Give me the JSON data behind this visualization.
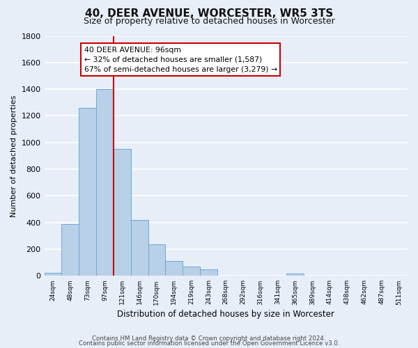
{
  "title": "40, DEER AVENUE, WORCESTER, WR5 3TS",
  "subtitle": "Size of property relative to detached houses in Worcester",
  "xlabel": "Distribution of detached houses by size in Worcester",
  "ylabel": "Number of detached properties",
  "footer_line1": "Contains HM Land Registry data © Crown copyright and database right 2024.",
  "footer_line2": "Contains public sector information licensed under the Open Government Licence v3.0.",
  "bin_labels": [
    "24sqm",
    "48sqm",
    "73sqm",
    "97sqm",
    "121sqm",
    "146sqm",
    "170sqm",
    "194sqm",
    "219sqm",
    "243sqm",
    "268sqm",
    "292sqm",
    "316sqm",
    "341sqm",
    "365sqm",
    "389sqm",
    "414sqm",
    "438sqm",
    "462sqm",
    "487sqm",
    "511sqm"
  ],
  "bar_values": [
    25,
    390,
    1260,
    1400,
    950,
    420,
    235,
    110,
    68,
    50,
    0,
    0,
    0,
    0,
    15,
    0,
    0,
    0,
    0,
    0,
    0
  ],
  "bar_color": "#b8d0e8",
  "bar_edge_color": "#6aaad4",
  "background_color": "#e8eef8",
  "grid_color": "#ffffff",
  "ylim": [
    0,
    1800
  ],
  "yticks": [
    0,
    200,
    400,
    600,
    800,
    1000,
    1200,
    1400,
    1600,
    1800
  ],
  "annotation_title": "40 DEER AVENUE: 96sqm",
  "annotation_line2": "← 32% of detached houses are smaller (1,587)",
  "annotation_line3": "67% of semi-detached houses are larger (3,279) →",
  "annotation_box_color": "#ffffff",
  "annotation_box_edge_color": "#cc0000",
  "redline_color": "#cc0000",
  "redline_bin_index": 4,
  "title_fontsize": 11,
  "subtitle_fontsize": 9
}
